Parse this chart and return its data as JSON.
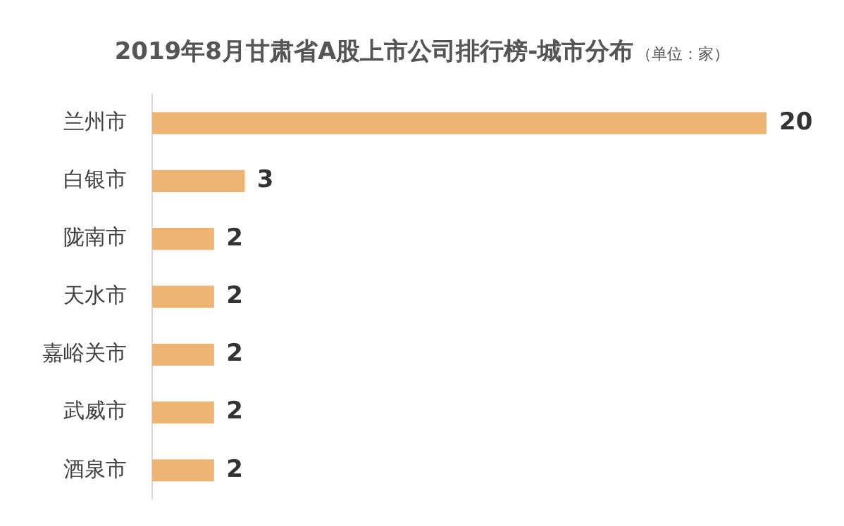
{
  "chart_data": {
    "type": "bar",
    "orientation": "horizontal",
    "title": "2019年8月甘肃省A股上市公司排行榜-城市分布",
    "subtitle": "（单位：家）",
    "categories": [
      "兰州市",
      "白银市",
      "陇南市",
      "天水市",
      "嘉峪关市",
      "武威市",
      "酒泉市"
    ],
    "values": [
      20,
      3,
      2,
      2,
      2,
      2,
      2
    ],
    "color": "#f0b472",
    "data_labels": true,
    "legend": false,
    "tick_labels": "y"
  }
}
